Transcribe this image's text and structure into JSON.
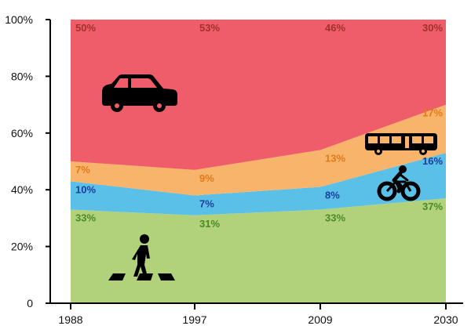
{
  "chart_data": {
    "type": "area",
    "stacked": true,
    "x": [
      "1988",
      "1997",
      "2009",
      "2030"
    ],
    "ylim": [
      0,
      100
    ],
    "y_tick_labels": [
      "0",
      "20%",
      "40%",
      "60%",
      "80%",
      "100%"
    ],
    "title": "",
    "xlabel": "",
    "ylabel": "",
    "legend": "none (pictograms drawn inside areas)",
    "grid": false,
    "series": [
      {
        "icon": "pedestrian-icon",
        "color": "#b1d27a",
        "label_color": "#4a8a25",
        "values": [
          33,
          31,
          33,
          37
        ],
        "labels": [
          "33%",
          "31%",
          "33%",
          "37%"
        ]
      },
      {
        "icon": "bicycle-icon",
        "color": "#5bc0e8",
        "label_color": "#1a3f9c",
        "values": [
          10,
          7,
          8,
          16
        ],
        "labels": [
          "10%",
          "7%",
          "8%",
          "16%"
        ]
      },
      {
        "icon": "bus-icon",
        "color": "#f7b46a",
        "label_color": "#e07a1a",
        "values": [
          7,
          9,
          13,
          17
        ],
        "labels": [
          "7%",
          "9%",
          "13%",
          "17%"
        ]
      },
      {
        "icon": "car-icon",
        "color": "#ef5d6a",
        "label_color": "#a2312c",
        "values": [
          50,
          53,
          46,
          30
        ],
        "labels": [
          "50%",
          "53%",
          "46%",
          "30%"
        ]
      }
    ]
  }
}
